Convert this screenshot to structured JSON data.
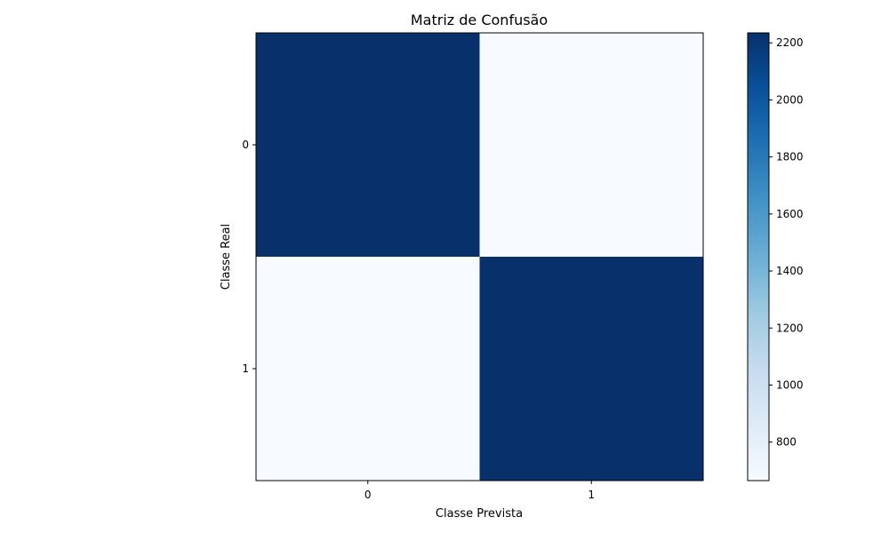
{
  "chart_data": {
    "type": "heatmap",
    "title": "Matriz de Confusão",
    "xlabel": "Classe Prevista",
    "ylabel": "Classe Real",
    "x_categories": [
      "0",
      "1"
    ],
    "y_categories": [
      "0",
      "1"
    ],
    "values": [
      [
        2235,
        665
      ],
      [
        665,
        2235
      ]
    ],
    "colormap": "Blues",
    "colorbar": {
      "range": [
        665,
        2235
      ],
      "ticks": [
        800,
        1000,
        1200,
        1400,
        1600,
        1800,
        2000,
        2200
      ],
      "tick_labels": [
        "800",
        "1000",
        "1200",
        "1400",
        "1600",
        "1800",
        "2000",
        "2200"
      ]
    },
    "colors": [
      "#f7fbff",
      "#deebf7",
      "#c6dbef",
      "#9ecae1",
      "#6baed6",
      "#4292c6",
      "#2171b5",
      "#08519c",
      "#08306b"
    ]
  }
}
